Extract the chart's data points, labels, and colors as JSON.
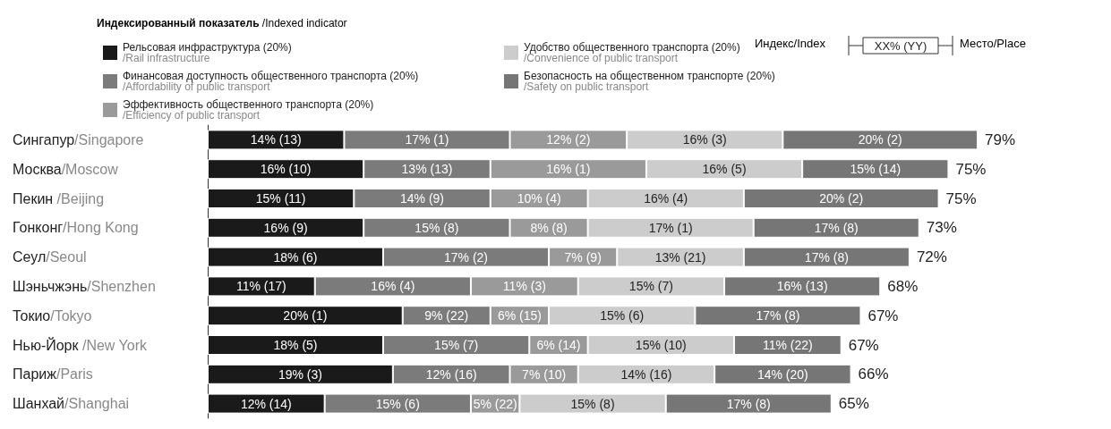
{
  "chart_data": {
    "type": "bar",
    "orientation": "horizontal",
    "stacked": true,
    "legend": "top left",
    "tick_labels": "y",
    "legend_title": "Индексированный показатель /Indexed indicator",
    "annotations": [
      "Индекс/Index",
      "XX% (YY)",
      "Место/Place"
    ],
    "categories": [
      "Сингапур/Singapore",
      "Москва/Moscow",
      "Пекин /Beijing",
      "Гонконг/Hong Kong",
      "Сеул/Seoul",
      "Шэньчжэнь/Shenzhen",
      "Токио/Tokyo",
      "Нью-Йорк /New York",
      "Париж/Paris",
      "Шанхай/Shanghai"
    ],
    "series": [
      {
        "name": "Рельсовая инфраструктура (20%)\n/Rail infrastructure",
        "color": "#1a1a1a",
        "values": [
          14,
          16,
          15,
          16,
          18,
          11,
          20,
          18,
          19,
          12
        ],
        "value_labels": [
          "14% (13)",
          "16% (10)",
          "15% (11)",
          "16% (9)",
          "18% (6)",
          "11% (17)",
          "20% (1)",
          "18% (5)",
          "19% (3)",
          "12% (14)"
        ]
      },
      {
        "name": "Финансовая доступность общественного транспорта (20%)\n/Affordability of public transport",
        "color": "#7b7b7b",
        "values": [
          17,
          13,
          14,
          15,
          17,
          16,
          9,
          15,
          12,
          15
        ],
        "value_labels": [
          "17% (1)",
          "13% (13)",
          "14% (9)",
          "15% (8)",
          "17% (2)",
          "16% (4)",
          "9% (22)",
          "15% (7)",
          "12% (16)",
          "15% (6)"
        ]
      },
      {
        "name": "Эффективность общественного транспорта (20%)\n/Efficiency of public transport",
        "color": "#9a9a9a",
        "values": [
          12,
          16,
          10,
          8,
          7,
          11,
          6,
          6,
          7,
          5
        ],
        "value_labels": [
          "12% (2)",
          "16% (1)",
          "10% (4)",
          "8% (8)",
          "7% (9)",
          "11% (3)",
          "6% (15)",
          "6% (14)",
          "7% (10)",
          "5% (22)"
        ]
      },
      {
        "name": "Удобство общественного транспорта (20%)\n/Convenience of public transport",
        "color": "#cccccc",
        "values": [
          16,
          16,
          16,
          17,
          13,
          15,
          15,
          15,
          14,
          15
        ],
        "value_labels": [
          "16% (3)",
          "16% (5)",
          "16% (4)",
          "17% (1)",
          "13% (21)",
          "15% (7)",
          "15% (6)",
          "15% (10)",
          "14% (16)",
          "15% (8)"
        ]
      },
      {
        "name": "Безопасность на общественном транспорте (20%)\n/Safety on public transport",
        "color": "#767676",
        "values": [
          20,
          15,
          20,
          17,
          17,
          16,
          17,
          11,
          14,
          17
        ],
        "value_labels": [
          "20% (2)",
          "15% (14)",
          "20% (2)",
          "17% (8)",
          "17% (8)",
          "16% (13)",
          "17% (8)",
          "11% (22)",
          "14% (20)",
          "17% (8)"
        ]
      }
    ],
    "totals": [
      "79%",
      "75%",
      "75%",
      "73%",
      "72%",
      "68%",
      "67%",
      "67%",
      "66%",
      "65%"
    ]
  }
}
